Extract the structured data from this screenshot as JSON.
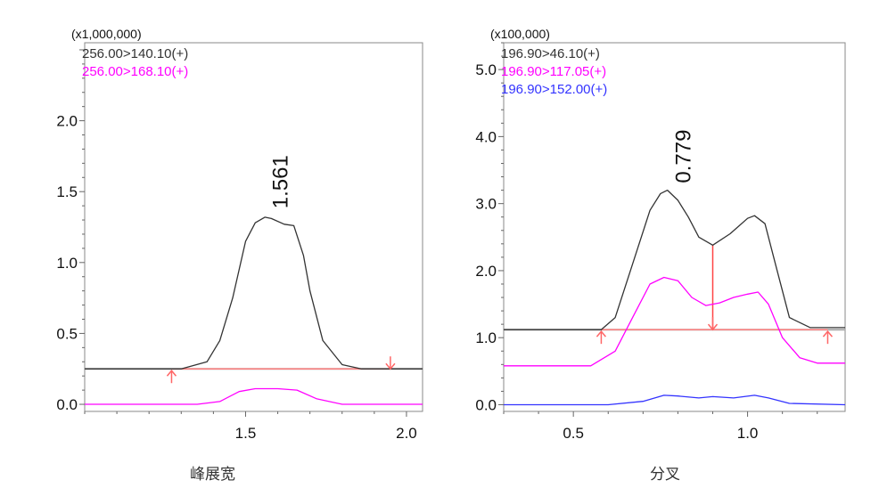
{
  "chart_data": [
    {
      "type": "line",
      "multiplier": "(x1,000,000)",
      "caption": "峰展宽",
      "xlim": [
        1.0,
        2.05
      ],
      "ylim": [
        -0.05,
        2.55
      ],
      "yticks": [
        0.0,
        0.5,
        1.0,
        1.5,
        2.0
      ],
      "ytick_labels": [
        "0.0",
        "0.5",
        "1.0",
        "1.5",
        "2.0"
      ],
      "xticks": [
        1.5,
        2.0
      ],
      "xtick_labels": [
        "1.5",
        "2.0"
      ],
      "grid": false,
      "legend_position": "top-left",
      "series": [
        {
          "name": "256.00>140.10(+)",
          "color": "#333333",
          "x": [
            1.0,
            1.3,
            1.38,
            1.42,
            1.46,
            1.5,
            1.53,
            1.56,
            1.58,
            1.62,
            1.65,
            1.68,
            1.7,
            1.74,
            1.8,
            1.86,
            1.9,
            2.05
          ],
          "y": [
            0.25,
            0.25,
            0.3,
            0.45,
            0.75,
            1.15,
            1.28,
            1.32,
            1.31,
            1.27,
            1.26,
            1.05,
            0.8,
            0.45,
            0.28,
            0.25,
            0.25,
            0.25
          ]
        },
        {
          "name": "256.00>168.10(+)",
          "color": "#ff00ff",
          "x": [
            1.0,
            1.35,
            1.42,
            1.48,
            1.53,
            1.6,
            1.66,
            1.72,
            1.8,
            2.05
          ],
          "y": [
            0.0,
            0.0,
            0.02,
            0.09,
            0.11,
            0.11,
            0.1,
            0.04,
            0.0,
            0.0
          ]
        }
      ],
      "baseline": {
        "x": [
          1.0,
          2.05
        ],
        "y": [
          0.25,
          0.25
        ],
        "color": "#aaaaaa"
      },
      "integration_line": {
        "x": [
          1.27,
          1.95
        ],
        "y": [
          0.25,
          0.25
        ],
        "color": "#ff7f7f"
      },
      "markers": [
        {
          "x": 1.27,
          "y": 0.25,
          "direction": "up",
          "color": "#ff6666"
        },
        {
          "x": 1.95,
          "y": 0.25,
          "direction": "down",
          "color": "#ff6666"
        }
      ],
      "peak_label": {
        "text": "1.561",
        "x": 1.58,
        "y": 1.33
      }
    },
    {
      "type": "line",
      "multiplier": "(x100,000)",
      "caption": "分叉",
      "xlim": [
        0.3,
        1.28
      ],
      "ylim": [
        -0.1,
        5.4
      ],
      "yticks": [
        0.0,
        1.0,
        2.0,
        3.0,
        4.0,
        5.0
      ],
      "ytick_labels": [
        "0.0",
        "1.0",
        "2.0",
        "3.0",
        "4.0",
        "5.0"
      ],
      "xticks": [
        0.5,
        1.0
      ],
      "xtick_labels": [
        "0.5",
        "1.0"
      ],
      "grid": false,
      "legend_position": "top-left",
      "series": [
        {
          "name": "196.90>46.10(+)",
          "color": "#333333",
          "x": [
            0.3,
            0.58,
            0.62,
            0.67,
            0.72,
            0.75,
            0.77,
            0.8,
            0.83,
            0.86,
            0.9,
            0.95,
            1.0,
            1.02,
            1.05,
            1.08,
            1.12,
            1.18,
            1.28
          ],
          "y": [
            1.12,
            1.12,
            1.3,
            2.1,
            2.9,
            3.15,
            3.2,
            3.05,
            2.8,
            2.5,
            2.38,
            2.55,
            2.78,
            2.82,
            2.7,
            2.1,
            1.3,
            1.15,
            1.15
          ]
        },
        {
          "name": "196.90>117.05(+)",
          "color": "#ff00ff",
          "x": [
            0.3,
            0.55,
            0.62,
            0.67,
            0.72,
            0.76,
            0.8,
            0.84,
            0.88,
            0.92,
            0.96,
            1.0,
            1.03,
            1.06,
            1.1,
            1.15,
            1.2,
            1.28
          ],
          "y": [
            0.58,
            0.58,
            0.8,
            1.3,
            1.8,
            1.9,
            1.85,
            1.6,
            1.48,
            1.52,
            1.6,
            1.65,
            1.68,
            1.5,
            1.0,
            0.7,
            0.62,
            0.62
          ]
        },
        {
          "name": "196.90>152.00(+)",
          "color": "#3333ff",
          "x": [
            0.3,
            0.6,
            0.7,
            0.76,
            0.8,
            0.86,
            0.9,
            0.96,
            1.02,
            1.06,
            1.12,
            1.28
          ],
          "y": [
            0.0,
            0.0,
            0.05,
            0.14,
            0.13,
            0.1,
            0.12,
            0.1,
            0.14,
            0.1,
            0.02,
            0.0
          ]
        }
      ],
      "baseline": {
        "x": [
          0.3,
          1.28
        ],
        "y": [
          1.12,
          1.12
        ],
        "color": "#aaaaaa"
      },
      "integration_lines": [
        {
          "x": [
            0.58,
            0.9
          ],
          "y": [
            1.12,
            1.12
          ],
          "color": "#ff7f7f"
        },
        {
          "x": [
            0.9,
            1.23
          ],
          "y": [
            1.12,
            1.12
          ],
          "color": "#ff7f7f"
        }
      ],
      "drop_line": {
        "x": [
          0.9,
          0.9
        ],
        "y": [
          1.12,
          2.38
        ],
        "color": "#ff4444"
      },
      "markers": [
        {
          "x": 0.58,
          "y": 1.12,
          "direction": "up",
          "color": "#ff6666"
        },
        {
          "x": 0.9,
          "y": 1.12,
          "direction": "down",
          "color": "#ff6666"
        },
        {
          "x": 1.23,
          "y": 1.12,
          "direction": "up",
          "color": "#ff6666"
        }
      ],
      "peak_label": {
        "text": "0.779",
        "x": 0.79,
        "y": 3.2
      }
    }
  ]
}
